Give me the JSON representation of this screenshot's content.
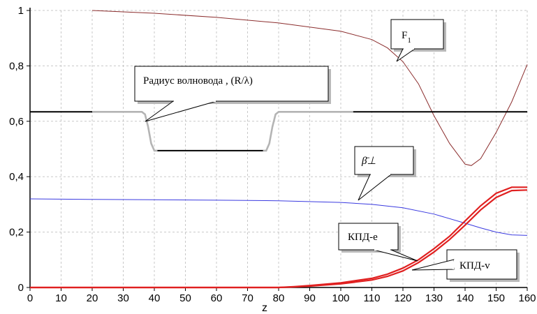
{
  "chart_data": {
    "type": "line",
    "xlabel": "z",
    "ylabel": "",
    "xlim": [
      0,
      160
    ],
    "ylim": [
      0,
      1
    ],
    "grid": true,
    "x_ticks": [
      "0",
      "10",
      "20",
      "30",
      "40",
      "50",
      "60",
      "70",
      "80",
      "90",
      "100",
      "110",
      "120",
      "130",
      "140",
      "150",
      "160"
    ],
    "y_ticks": [
      {
        "v": 0,
        "label": "0"
      },
      {
        "v": 0.2,
        "label": "0,2"
      },
      {
        "v": 0.4,
        "label": "0,4"
      },
      {
        "v": 0.6,
        "label": "0,6"
      },
      {
        "v": 0.8,
        "label": "0,8"
      },
      {
        "v": 1,
        "label": "1"
      }
    ],
    "series": [
      {
        "key": "F1",
        "color": "#8b2d2d",
        "points": [
          [
            20,
            1.0
          ],
          [
            40,
            0.99
          ],
          [
            60,
            0.975
          ],
          [
            80,
            0.955
          ],
          [
            100,
            0.925
          ],
          [
            110,
            0.895
          ],
          [
            115,
            0.865
          ],
          [
            120,
            0.815
          ],
          [
            125,
            0.735
          ],
          [
            130,
            0.62
          ],
          [
            135,
            0.52
          ],
          [
            140,
            0.445
          ],
          [
            142,
            0.44
          ],
          [
            145,
            0.465
          ],
          [
            150,
            0.56
          ],
          [
            155,
            0.67
          ],
          [
            160,
            0.805
          ]
        ]
      },
      {
        "key": "radius",
        "color": "#000000",
        "segments": [
          {
            "color": "#000000",
            "points": [
              [
                0,
                0.634
              ],
              [
                20,
                0.634
              ]
            ]
          },
          {
            "color": "#b4b4b4",
            "points": [
              [
                20,
                0.634
              ],
              [
                36,
                0.634
              ],
              [
                37,
                0.625
              ],
              [
                38,
                0.58
              ],
              [
                39,
                0.52
              ],
              [
                40,
                0.494
              ],
              [
                41,
                0.494
              ]
            ]
          },
          {
            "color": "#000000",
            "points": [
              [
                41,
                0.494
              ],
              [
                75,
                0.494
              ]
            ]
          },
          {
            "color": "#b4b4b4",
            "points": [
              [
                75,
                0.494
              ],
              [
                76,
                0.494
              ],
              [
                77,
                0.52
              ],
              [
                78,
                0.58
              ],
              [
                79,
                0.625
              ],
              [
                80,
                0.634
              ],
              [
                104,
                0.634
              ]
            ]
          },
          {
            "color": "#000000",
            "points": [
              [
                104,
                0.634
              ],
              [
                160,
                0.634
              ]
            ]
          }
        ]
      },
      {
        "key": "beta",
        "color": "#3a3ae0",
        "points": [
          [
            0,
            0.32
          ],
          [
            20,
            0.318
          ],
          [
            40,
            0.317
          ],
          [
            60,
            0.315
          ],
          [
            80,
            0.313
          ],
          [
            100,
            0.307
          ],
          [
            110,
            0.3
          ],
          [
            120,
            0.288
          ],
          [
            130,
            0.265
          ],
          [
            140,
            0.232
          ],
          [
            145,
            0.215
          ],
          [
            150,
            0.2
          ],
          [
            155,
            0.19
          ],
          [
            160,
            0.188
          ]
        ]
      },
      {
        "key": "kpd_e",
        "color": "#e02020",
        "points": [
          [
            0,
            0
          ],
          [
            80,
            0
          ],
          [
            85,
            0.003
          ],
          [
            90,
            0.007
          ],
          [
            100,
            0.017
          ],
          [
            110,
            0.033
          ],
          [
            115,
            0.048
          ],
          [
            120,
            0.07
          ],
          [
            125,
            0.1
          ],
          [
            130,
            0.14
          ],
          [
            135,
            0.185
          ],
          [
            140,
            0.24
          ],
          [
            145,
            0.295
          ],
          [
            150,
            0.34
          ],
          [
            155,
            0.362
          ],
          [
            160,
            0.362
          ]
        ]
      },
      {
        "key": "kpd_v",
        "color": "#e02020",
        "points": [
          [
            0,
            0
          ],
          [
            80,
            0
          ],
          [
            85,
            0.002
          ],
          [
            90,
            0.005
          ],
          [
            100,
            0.013
          ],
          [
            110,
            0.027
          ],
          [
            115,
            0.04
          ],
          [
            120,
            0.06
          ],
          [
            125,
            0.09
          ],
          [
            130,
            0.128
          ],
          [
            135,
            0.173
          ],
          [
            140,
            0.225
          ],
          [
            145,
            0.28
          ],
          [
            150,
            0.325
          ],
          [
            155,
            0.35
          ],
          [
            160,
            0.352
          ]
        ]
      }
    ],
    "annotations": [
      {
        "key": "F1",
        "label": "F",
        "sub": "1"
      },
      {
        "key": "radius",
        "label": "Радиус волновода , (R/λ)"
      },
      {
        "key": "beta",
        "label": "β̄⊥"
      },
      {
        "key": "kpd_e",
        "label": "КПД-е"
      },
      {
        "key": "kpd_v",
        "label": "КПД-v"
      }
    ]
  }
}
